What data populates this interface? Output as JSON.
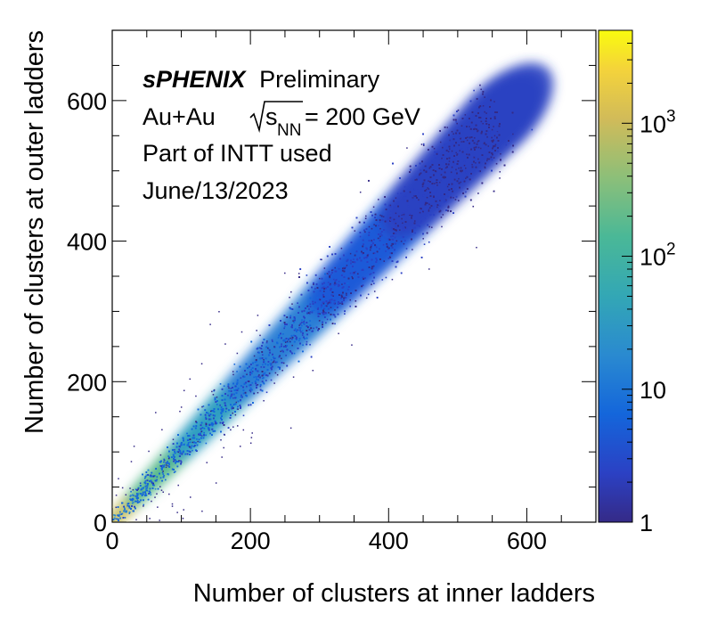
{
  "chart_data": {
    "type": "heatmap",
    "title": "",
    "xlabel": "Number of clusters at inner ladders",
    "ylabel": "Number of clusters at outer ladders",
    "xlim": [
      0,
      700
    ],
    "ylim": [
      0,
      700
    ],
    "xticks": [
      0,
      200,
      400,
      600
    ],
    "yticks": [
      0,
      200,
      400,
      600
    ],
    "colorbar": {
      "scale": "log",
      "range": [
        1,
        5000
      ],
      "tick_labels": [
        {
          "value": 1,
          "base": "1",
          "exp": ""
        },
        {
          "value": 10,
          "base": "10",
          "exp": ""
        },
        {
          "value": 100,
          "base": "10",
          "exp": "2"
        },
        {
          "value": 1000,
          "base": "10",
          "exp": "3"
        }
      ]
    },
    "annotations": {
      "experiment": "sPHENIX",
      "status": "Preliminary",
      "system_prefix": "Au+Au",
      "energy_symbol": "s",
      "energy_subscript": "NN",
      "energy_value": "= 200 GeV",
      "detector_note": "Part of INTT used",
      "date": "June/13/2023"
    },
    "distribution": {
      "description_points": [
        {
          "x": 10,
          "y": 10,
          "density": "highest"
        },
        {
          "x": 100,
          "y": 100,
          "density": "high"
        },
        {
          "x": 250,
          "y": 260,
          "density": "medium"
        },
        {
          "x": 500,
          "y": 500,
          "density": "low"
        }
      ],
      "band_slope": 1.0,
      "max_x": 580,
      "max_y": 620
    },
    "grid": false,
    "legend": "none"
  }
}
